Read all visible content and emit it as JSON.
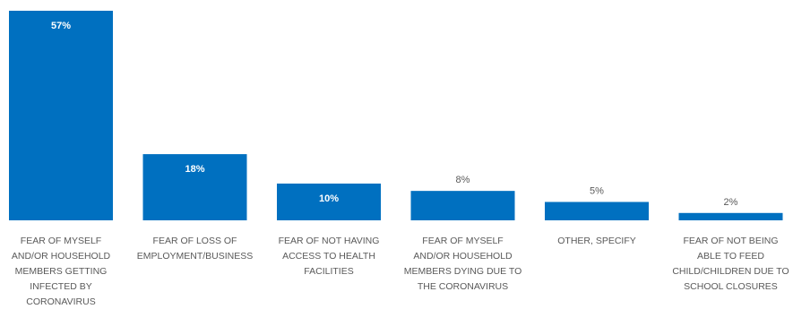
{
  "chart_data": {
    "type": "bar",
    "categories": [
      "FEAR OF MYSELF AND/OR HOUSEHOLD MEMBERS GETTING INFECTED BY CORONAVIRUS",
      "FEAR OF LOSS OF EMPLOYMENT/BUSINESS",
      "FEAR OF NOT HAVING ACCESS TO HEALTH FACILITIES",
      "FEAR OF MYSELF AND/OR HOUSEHOLD MEMBERS DYING DUE TO THE CORONAVIRUS",
      "OTHER, SPECIFY",
      "FEAR OF NOT BEING ABLE TO FEED CHILD/CHILDREN DUE TO SCHOOL CLOSURES"
    ],
    "category_lines": [
      [
        "FEAR OF MYSELF",
        "AND/OR HOUSEHOLD",
        "MEMBERS GETTING",
        "INFECTED BY",
        "CORONAVIRUS"
      ],
      [
        "FEAR OF LOSS OF",
        "EMPLOYMENT/BUSINESS"
      ],
      [
        "FEAR OF NOT HAVING",
        "ACCESS TO HEALTH",
        "FACILITIES"
      ],
      [
        "FEAR OF MYSELF",
        "AND/OR HOUSEHOLD",
        "MEMBERS DYING DUE TO",
        "THE CORONAVIRUS"
      ],
      [
        "OTHER, SPECIFY"
      ],
      [
        "FEAR OF NOT BEING",
        "ABLE TO FEED",
        "CHILD/CHILDREN DUE TO",
        "SCHOOL CLOSURES"
      ]
    ],
    "values": [
      57,
      18,
      10,
      8,
      5,
      2
    ],
    "data_labels": [
      "57%",
      "18%",
      "10%",
      "8%",
      "5%",
      "2%"
    ],
    "title": "",
    "xlabel": "",
    "ylabel": "",
    "ylim": [
      0,
      57
    ],
    "grid": false,
    "legend": "none",
    "bar_color": "#0070C0"
  }
}
